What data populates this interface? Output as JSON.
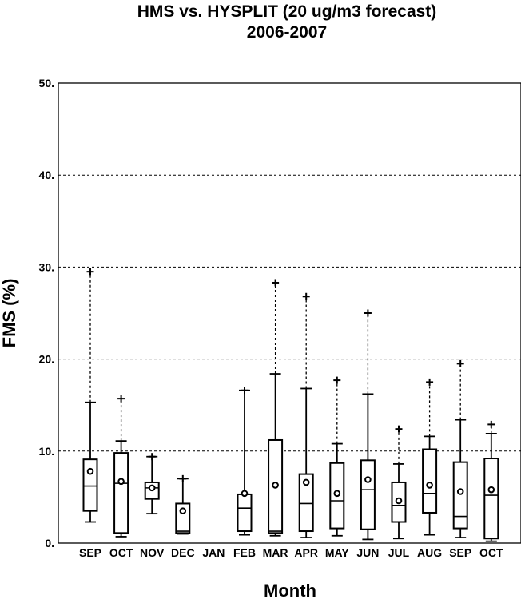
{
  "chart_data": {
    "type": "box",
    "title": "HMS vs. HYSPLIT (20 ug/m3 forecast)",
    "subtitle": "2006-2007",
    "xlabel": "Month",
    "ylabel": "FMS (%)",
    "ylim": [
      0,
      50
    ],
    "yticks": [
      "0.",
      "10.",
      "20.",
      "30.",
      "40.",
      "50."
    ],
    "ytick_values": [
      0,
      10,
      20,
      30,
      40,
      50
    ],
    "grid": true,
    "categories": [
      "SEP",
      "OCT",
      "NOV",
      "DEC",
      "JAN",
      "FEB",
      "MAR",
      "APR",
      "MAY",
      "JUN",
      "JUL",
      "AUG",
      "SEP",
      "OCT"
    ],
    "boxes": [
      {
        "min": 2.3,
        "q1": 3.5,
        "median": 6.2,
        "q3": 9.1,
        "max": 15.3,
        "mean": 7.8,
        "outlier": 29.5
      },
      {
        "min": 0.7,
        "q1": 1.1,
        "median": 6.5,
        "q3": 9.8,
        "max": 11.1,
        "mean": 6.7,
        "outlier": 15.7
      },
      {
        "min": 3.2,
        "q1": 4.8,
        "median": 6.0,
        "q3": 6.6,
        "max": 9.4,
        "mean": 6.0,
        "outlier": 9.4
      },
      {
        "min": 1.0,
        "q1": 1.1,
        "median": 1.3,
        "q3": 4.3,
        "max": 7.0,
        "mean": 3.5,
        "outlier": 7.0
      },
      null,
      {
        "min": 0.9,
        "q1": 1.3,
        "median": 3.8,
        "q3": 5.3,
        "max": 16.6,
        "mean": 5.4,
        "outlier": 16.6
      },
      {
        "min": 0.8,
        "q1": 1.1,
        "median": 1.3,
        "q3": 11.2,
        "max": 18.4,
        "mean": 6.3,
        "outlier": 28.3
      },
      {
        "min": 0.6,
        "q1": 1.3,
        "median": 4.3,
        "q3": 7.5,
        "max": 16.8,
        "mean": 6.6,
        "outlier": 26.8
      },
      {
        "min": 0.8,
        "q1": 1.6,
        "median": 4.6,
        "q3": 8.7,
        "max": 10.8,
        "mean": 5.4,
        "outlier": 17.7
      },
      {
        "min": 0.4,
        "q1": 1.5,
        "median": 5.8,
        "q3": 9.0,
        "max": 16.2,
        "mean": 6.9,
        "outlier": 25.0
      },
      {
        "min": 0.5,
        "q1": 2.3,
        "median": 4.1,
        "q3": 6.6,
        "max": 8.6,
        "mean": 4.6,
        "outlier": 12.4
      },
      {
        "min": 0.9,
        "q1": 3.3,
        "median": 5.4,
        "q3": 10.2,
        "max": 11.6,
        "mean": 6.3,
        "outlier": 17.5
      },
      {
        "min": 0.6,
        "q1": 1.6,
        "median": 2.9,
        "q3": 8.8,
        "max": 13.4,
        "mean": 5.6,
        "outlier": 19.5
      },
      {
        "min": 0.2,
        "q1": 0.5,
        "median": 5.2,
        "q3": 9.2,
        "max": 11.9,
        "mean": 5.8,
        "outlier": 12.9
      }
    ]
  }
}
